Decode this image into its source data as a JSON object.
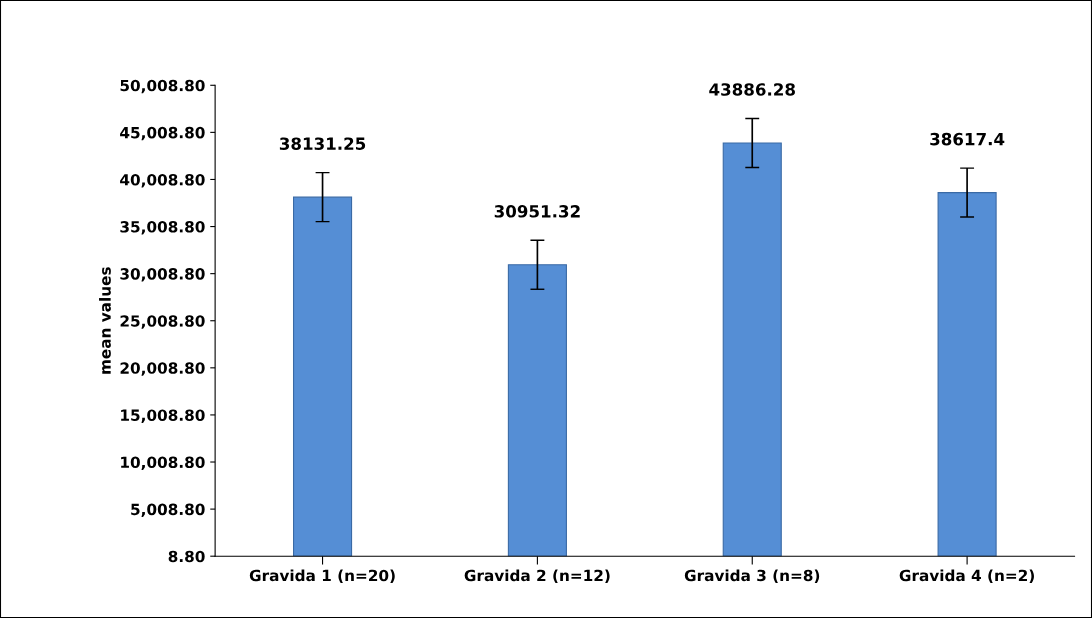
{
  "chart_data": {
    "type": "bar",
    "ylabel": "mean values",
    "categories": [
      "Gravida 1 (n=20)",
      "Gravida 2 (n=12)",
      "Gravida 3 (n=8)",
      "Gravida 4 (n=2)"
    ],
    "values": [
      38131.25,
      30951.32,
      43886.28,
      38617.4
    ],
    "errors": [
      2600,
      2600,
      2600,
      2600
    ],
    "color": "#558ed5",
    "ylim": [
      8.8,
      50008.8
    ],
    "yticks": [
      {
        "value": 8.8,
        "label": "8.80"
      },
      {
        "value": 5008.8,
        "label": "5,008.80"
      },
      {
        "value": 10008.8,
        "label": "10,008.80"
      },
      {
        "value": 15008.8,
        "label": "15,008.80"
      },
      {
        "value": 20008.8,
        "label": "20,008.80"
      },
      {
        "value": 25008.8,
        "label": "25,008.80"
      },
      {
        "value": 30008.8,
        "label": "30,008.80"
      },
      {
        "value": 35008.8,
        "label": "35,008.80"
      },
      {
        "value": 40008.8,
        "label": "40,008.80"
      },
      {
        "value": 45008.8,
        "label": "45,008.80"
      },
      {
        "value": 50008.8,
        "label": "50,008.80"
      }
    ],
    "data_labels": true,
    "grid": false
  }
}
